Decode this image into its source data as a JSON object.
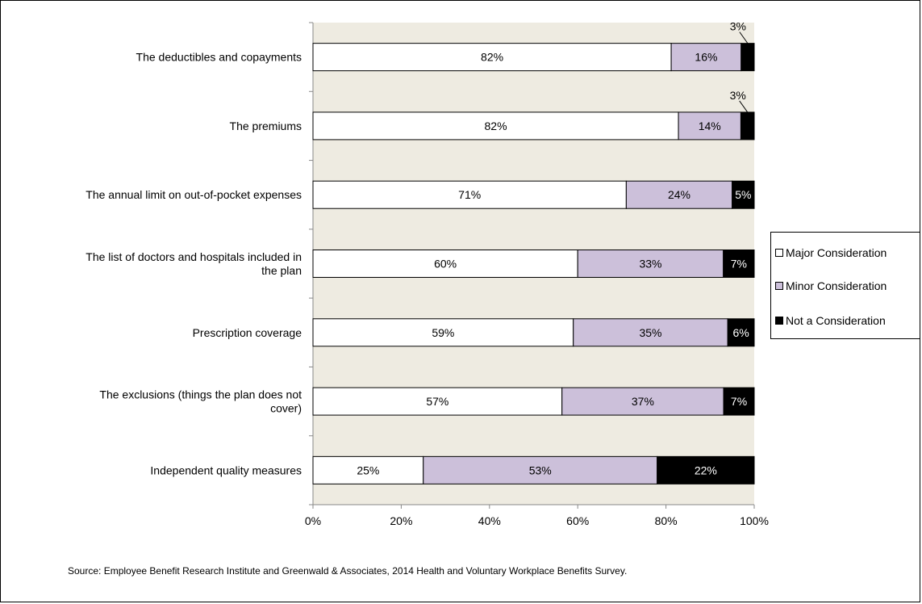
{
  "colors": {
    "plot_background": "#eeebe1",
    "major": "#ffffff",
    "minor": "#ccc0da",
    "not": "#000000"
  },
  "chart_data": {
    "type": "bar",
    "orientation": "horizontal",
    "stacked": true,
    "categories": [
      "The deductibles and copayments",
      "The premiums",
      "The annual limit on out-of-pocket expenses",
      "The list of doctors and hospitals included in the plan",
      "Prescription coverage",
      "The exclusions (things the plan does not cover)",
      "Independent quality measures"
    ],
    "series": [
      {
        "name": "Major Consideration",
        "values": [
          82,
          82,
          71,
          60,
          59,
          57,
          25
        ],
        "labels": [
          "82%",
          "82%",
          "71%",
          "60%",
          "59%",
          "57%",
          "25%"
        ]
      },
      {
        "name": "Minor Consideration",
        "values": [
          16,
          14,
          24,
          33,
          35,
          37,
          53
        ],
        "labels": [
          "16%",
          "14%",
          "24%",
          "33%",
          "35%",
          "37%",
          "53%"
        ]
      },
      {
        "name": "Not a Consideration",
        "values": [
          3,
          3,
          5,
          7,
          6,
          7,
          22
        ],
        "labels": [
          "3%",
          "3%",
          "5%",
          "7%",
          "6%",
          "7%",
          "22%"
        ]
      }
    ],
    "xlim": [
      0,
      100
    ],
    "x_ticks": [
      "0%",
      "20%",
      "40%",
      "60%",
      "80%",
      "100%"
    ],
    "title": "",
    "xlabel": "",
    "ylabel": "",
    "legend_position": "right",
    "grid": false
  },
  "source_text": "Source: Employee Benefit Research Institute and Greenwald & Associates, 2014 Health and Voluntary Workplace Benefits Survey."
}
